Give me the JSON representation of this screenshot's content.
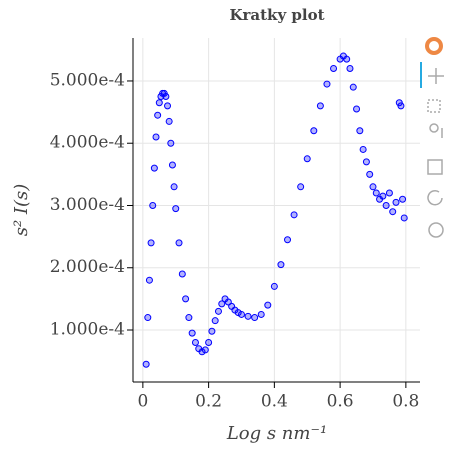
{
  "chart_data": {
    "type": "scatter",
    "title": "Kratky plot",
    "x_label": "Log s nm⁻¹",
    "y_label": "s² I(s)",
    "xlim": [
      -0.03,
      0.843
    ],
    "ylim": [
      1.65e-05,
      0.000569
    ],
    "xticks": [
      0,
      0.2,
      0.4,
      0.6,
      0.8
    ],
    "yticks": [
      {
        "value": 0.0001,
        "label": "1.000e-4"
      },
      {
        "value": 0.0002,
        "label": "2.000e-4"
      },
      {
        "value": 0.0003,
        "label": "3.000e-4"
      },
      {
        "value": 0.0004,
        "label": "4.000e-4"
      },
      {
        "value": 0.0005,
        "label": "5.000e-4"
      }
    ],
    "grid": true,
    "color": "#0000ff",
    "x": [
      0.01,
      0.015,
      0.02,
      0.025,
      0.03,
      0.035,
      0.04,
      0.045,
      0.05,
      0.055,
      0.06,
      0.065,
      0.07,
      0.075,
      0.08,
      0.085,
      0.09,
      0.095,
      0.1,
      0.11,
      0.12,
      0.13,
      0.14,
      0.15,
      0.16,
      0.17,
      0.18,
      0.19,
      0.2,
      0.21,
      0.22,
      0.23,
      0.24,
      0.25,
      0.26,
      0.27,
      0.28,
      0.29,
      0.3,
      0.32,
      0.34,
      0.36,
      0.38,
      0.4,
      0.42,
      0.44,
      0.46,
      0.48,
      0.5,
      0.52,
      0.54,
      0.56,
      0.58,
      0.6,
      0.61,
      0.62,
      0.63,
      0.64,
      0.65,
      0.66,
      0.67,
      0.68,
      0.69,
      0.7,
      0.71,
      0.72,
      0.73,
      0.74,
      0.75,
      0.76,
      0.77,
      0.78,
      0.785,
      0.79,
      0.795
    ],
    "values": [
      4.5e-05,
      0.00012,
      0.00018,
      0.00024,
      0.0003,
      0.00036,
      0.00041,
      0.000445,
      0.000465,
      0.000475,
      0.00048,
      0.00048,
      0.000475,
      0.00046,
      0.000435,
      0.0004,
      0.000365,
      0.00033,
      0.000295,
      0.00024,
      0.00019,
      0.00015,
      0.00012,
      9.5e-05,
      8e-05,
      7e-05,
      6.5e-05,
      6.8e-05,
      8e-05,
      9.8e-05,
      0.000115,
      0.00013,
      0.000142,
      0.00015,
      0.000145,
      0.000138,
      0.000132,
      0.000128,
      0.000125,
      0.000122,
      0.00012,
      0.000125,
      0.00014,
      0.00017,
      0.000205,
      0.000245,
      0.000285,
      0.00033,
      0.000375,
      0.00042,
      0.00046,
      0.000495,
      0.00052,
      0.000535,
      0.00054,
      0.000535,
      0.00052,
      0.00049,
      0.000455,
      0.00042,
      0.00039,
      0.00037,
      0.00035,
      0.00033,
      0.00032,
      0.00031,
      0.000315,
      0.0003,
      0.00032,
      0.00029,
      0.000305,
      0.000465,
      0.00046,
      0.00031,
      0.00028
    ]
  }
}
